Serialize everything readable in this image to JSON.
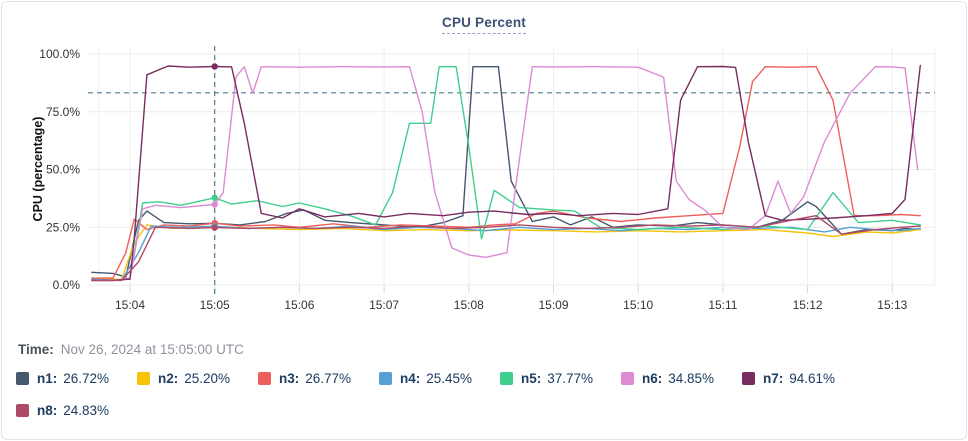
{
  "header": {
    "title": "CPU Percent"
  },
  "time_row": {
    "label": "Time:",
    "value": "Nov 26, 2024 at 15:05:00 UTC"
  },
  "legend": [
    {
      "name": "n1:",
      "value": "26.72%",
      "color": "#44586e"
    },
    {
      "name": "n2:",
      "value": "25.20%",
      "color": "#f6c309"
    },
    {
      "name": "n3:",
      "value": "26.77%",
      "color": "#ee5f5b"
    },
    {
      "name": "n4:",
      "value": "25.45%",
      "color": "#56a0d5"
    },
    {
      "name": "n5:",
      "value": "37.77%",
      "color": "#3ecf8e"
    },
    {
      "name": "n6:",
      "value": "34.85%",
      "color": "#dd8bd3"
    },
    {
      "name": "n7:",
      "value": "94.61%",
      "color": "#792c60"
    },
    {
      "name": "n8:",
      "value": "24.83%",
      "color": "#ae4a66"
    }
  ],
  "chart_data": {
    "type": "line",
    "title": "CPU Percent",
    "xlabel": "",
    "ylabel": "CPU (percentage)",
    "ylim": [
      0,
      100
    ],
    "xlim_minutes": [
      3.63,
      13.5
    ],
    "grid": true,
    "legend_position": "bottom",
    "threshold_dashed_line": 83.2,
    "crosshair_time": 5.0,
    "yticks": [
      {
        "v": 100,
        "label": "100.0%"
      },
      {
        "v": 75,
        "label": "75.0%"
      },
      {
        "v": 50,
        "label": "50.0%"
      },
      {
        "v": 25,
        "label": "25.0%"
      },
      {
        "v": 0,
        "label": "0.0%"
      }
    ],
    "xticks": [
      {
        "t": 4,
        "label": "15:04"
      },
      {
        "t": 5,
        "label": "15:05"
      },
      {
        "t": 6,
        "label": "15:06"
      },
      {
        "t": 7,
        "label": "15:07"
      },
      {
        "t": 8,
        "label": "15:08"
      },
      {
        "t": 9,
        "label": "15:09"
      },
      {
        "t": 10,
        "label": "15:10"
      },
      {
        "t": 11,
        "label": "15:11"
      },
      {
        "t": 12,
        "label": "15:12"
      },
      {
        "t": 13,
        "label": "15:13"
      }
    ],
    "series": [
      {
        "name": "n1",
        "color": "#44586e",
        "x": [
          3.55,
          3.8,
          3.95,
          4.1,
          4.2,
          4.4,
          4.7,
          5.0,
          5.3,
          5.6,
          5.85,
          6.05,
          6.3,
          6.6,
          7.0,
          7.4,
          7.7,
          7.93,
          8.05,
          8.35,
          8.5,
          8.75,
          9.0,
          9.2,
          9.45,
          9.7,
          10.0,
          10.4,
          10.7,
          11.0,
          11.4,
          11.7,
          12.0,
          12.1,
          12.4,
          12.7,
          13.0,
          13.15,
          13.33
        ],
        "y": [
          5.5,
          5,
          3.5,
          28,
          32,
          27,
          26.5,
          26.72,
          26,
          27.5,
          31,
          32.5,
          28,
          27,
          26,
          25,
          27,
          30,
          94.5,
          94.5,
          45,
          27.5,
          29.5,
          26,
          29.5,
          25,
          26,
          25.5,
          27,
          26,
          25,
          28,
          36,
          34,
          22,
          24,
          23.5,
          24.5,
          24
        ]
      },
      {
        "name": "n2",
        "color": "#f6c309",
        "x": [
          3.55,
          3.9,
          4.05,
          4.2,
          4.5,
          5.0,
          5.5,
          6.0,
          6.5,
          7.0,
          7.5,
          8.0,
          8.5,
          9.0,
          9.5,
          10.0,
          10.5,
          11.0,
          11.5,
          12.0,
          12.3,
          12.7,
          13.0,
          13.33
        ],
        "y": [
          2.5,
          2.5,
          18,
          26,
          24.5,
          25.2,
          24.5,
          24,
          24.5,
          23.5,
          24,
          23.5,
          23.8,
          23.5,
          23,
          23.5,
          23,
          23.5,
          24,
          22.5,
          21,
          23,
          22.5,
          24
        ]
      },
      {
        "name": "n3",
        "color": "#ee5f5b",
        "x": [
          3.55,
          3.8,
          3.95,
          4.05,
          4.2,
          4.4,
          4.7,
          5.0,
          5.3,
          5.7,
          6.0,
          6.4,
          6.8,
          7.2,
          7.6,
          8.0,
          8.3,
          8.55,
          8.8,
          9.0,
          9.4,
          9.8,
          10.2,
          10.6,
          11.0,
          11.2,
          11.35,
          11.5,
          11.8,
          12.1,
          12.3,
          12.55,
          12.8,
          13.1,
          13.33
        ],
        "y": [
          3,
          3,
          14,
          28.5,
          24,
          26,
          25.5,
          26.77,
          25.5,
          26,
          25,
          26.5,
          25,
          26,
          25.5,
          25,
          26,
          26.5,
          31,
          32,
          29,
          27.5,
          29,
          30,
          31,
          60,
          88,
          94.5,
          94.3,
          94.5,
          80,
          30,
          30,
          30.5,
          30
        ]
      },
      {
        "name": "n4",
        "color": "#56a0d5",
        "x": [
          3.55,
          3.9,
          4.1,
          4.25,
          4.6,
          5.0,
          5.4,
          5.8,
          6.2,
          6.6,
          7.0,
          7.4,
          7.8,
          8.2,
          8.6,
          9.0,
          9.4,
          9.8,
          10.2,
          10.6,
          11.0,
          11.4,
          11.8,
          12.2,
          12.5,
          12.8,
          13.1,
          13.33
        ],
        "y": [
          2.5,
          2,
          14,
          25.5,
          25,
          25.45,
          24.5,
          25,
          24.5,
          25.5,
          24,
          25,
          24.5,
          23.5,
          25,
          24,
          24.5,
          23.5,
          24.5,
          24,
          25,
          24.5,
          25,
          23,
          25,
          24,
          23.5,
          24.5
        ]
      },
      {
        "name": "n5",
        "color": "#3ecf8e",
        "x": [
          3.55,
          3.8,
          4.0,
          4.15,
          4.35,
          4.6,
          5.0,
          5.2,
          5.5,
          5.8,
          6.0,
          6.3,
          6.6,
          6.9,
          7.1,
          7.3,
          7.55,
          7.65,
          7.85,
          8.0,
          8.15,
          8.3,
          8.6,
          9.0,
          9.25,
          9.55,
          10.0,
          10.5,
          11.0,
          11.5,
          12.0,
          12.3,
          12.6,
          13.0,
          13.33
        ],
        "y": [
          2,
          2,
          3,
          35.5,
          36,
          34.5,
          37.77,
          35,
          36.5,
          34,
          35.5,
          33,
          30,
          26,
          40,
          70,
          70,
          94.5,
          94.5,
          60,
          20,
          41,
          33.5,
          32.5,
          32,
          25,
          24,
          25,
          24,
          25.5,
          24,
          40,
          27,
          28,
          26
        ]
      },
      {
        "name": "n6",
        "color": "#dd8bd3",
        "x": [
          3.55,
          3.8,
          4.0,
          4.15,
          4.3,
          4.6,
          5.0,
          5.1,
          5.25,
          5.35,
          5.45,
          5.55,
          6.0,
          6.5,
          7.0,
          7.3,
          7.45,
          7.6,
          7.8,
          8.0,
          8.2,
          8.45,
          8.6,
          8.75,
          9.0,
          9.5,
          10.0,
          10.3,
          10.45,
          10.6,
          10.8,
          11.0,
          11.3,
          11.5,
          11.65,
          11.8,
          11.95,
          12.2,
          12.5,
          12.8,
          13.0,
          13.15,
          13.3
        ],
        "y": [
          2,
          2,
          3,
          33,
          34.5,
          33.5,
          34.85,
          40,
          90,
          94.5,
          83,
          94.5,
          94.3,
          94.5,
          94.4,
          94.5,
          75,
          40,
          16,
          13,
          12,
          14,
          55,
          94.5,
          94.4,
          94.5,
          94.3,
          90,
          45,
          37,
          32,
          25,
          24,
          30,
          45,
          31,
          38,
          62,
          83,
          94.5,
          94.4,
          94,
          50
        ]
      },
      {
        "name": "n7",
        "color": "#792c60",
        "x": [
          3.55,
          3.8,
          4.0,
          4.05,
          4.2,
          4.45,
          4.7,
          5.0,
          5.2,
          5.35,
          5.55,
          5.8,
          6.0,
          6.3,
          6.7,
          7.0,
          7.3,
          7.7,
          8.0,
          8.3,
          8.7,
          9.0,
          9.3,
          9.7,
          10.0,
          10.35,
          10.5,
          10.7,
          11.0,
          11.15,
          11.3,
          11.5,
          11.7,
          12.0,
          12.3,
          12.7,
          13.0,
          13.15,
          13.33
        ],
        "y": [
          2,
          2,
          2.5,
          20,
          91,
          94.8,
          94.3,
          94.61,
          94.4,
          70,
          31,
          29,
          33,
          29.5,
          31,
          29.5,
          31,
          30,
          31.5,
          32,
          30.5,
          31,
          30,
          31,
          30.5,
          33,
          80,
          94.5,
          94.6,
          94.2,
          62,
          30,
          28,
          28.5,
          29,
          30,
          31,
          37,
          95
        ]
      },
      {
        "name": "n8",
        "color": "#ae4a66",
        "x": [
          3.55,
          3.9,
          4.1,
          4.3,
          4.7,
          5.0,
          5.4,
          5.8,
          6.2,
          6.6,
          7.0,
          7.4,
          7.8,
          8.2,
          8.6,
          9.0,
          9.4,
          9.8,
          10.2,
          10.6,
          11.0,
          11.4,
          11.8,
          12.1,
          12.4,
          12.8,
          13.1,
          13.33
        ],
        "y": [
          2,
          2,
          10,
          25,
          24.5,
          24.83,
          24.5,
          25,
          24.5,
          25,
          24.5,
          25.5,
          24.5,
          25,
          26,
          25,
          24.5,
          25,
          26,
          25.5,
          26,
          25,
          28,
          30,
          22,
          24,
          25,
          25.5
        ]
      }
    ],
    "markers_at_crosshair": [
      {
        "series": "n1",
        "v": 26.72,
        "color": "#44586e"
      },
      {
        "series": "n2",
        "v": 25.2,
        "color": "#f6c309"
      },
      {
        "series": "n3",
        "v": 26.77,
        "color": "#ee5f5b"
      },
      {
        "series": "n4",
        "v": 25.45,
        "color": "#56a0d5"
      },
      {
        "series": "n5",
        "v": 37.77,
        "color": "#3ecf8e"
      },
      {
        "series": "n6",
        "v": 34.85,
        "color": "#dd8bd3"
      },
      {
        "series": "n7",
        "v": 94.61,
        "color": "#792c60"
      },
      {
        "series": "n8",
        "v": 24.83,
        "color": "#ae4a66"
      }
    ],
    "style": {
      "grid_color": "#ebebeb",
      "tick_color": "#d9d9d9",
      "axis_text_color": "#333333",
      "dashed_line_color": "#4e7f92"
    }
  }
}
